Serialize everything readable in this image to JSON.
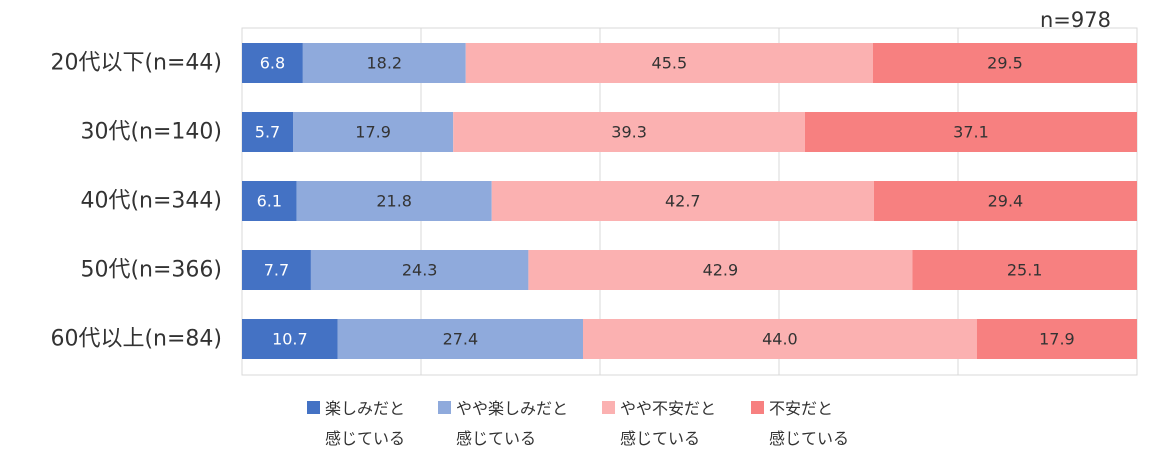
{
  "chart_data": {
    "type": "bar",
    "orientation": "horizontal",
    "stacked": true,
    "percent_stacked": true,
    "annotation": "n=978",
    "categories": [
      "20代以下(n=44)",
      "30代(n=140)",
      "40代(n=344)",
      "50代(n=366)",
      "60代以上(n=84)"
    ],
    "series": [
      {
        "name": "楽しみだと\n感じている",
        "color": "#4472c4",
        "values": [
          6.8,
          5.7,
          6.1,
          7.7,
          10.7
        ]
      },
      {
        "name": "やや楽しみだと\n感じている",
        "color": "#8faadc",
        "values": [
          18.2,
          17.9,
          21.8,
          24.3,
          27.4
        ]
      },
      {
        "name": "やや不安だと\n感じている",
        "color": "#fbb1b1",
        "values": [
          45.5,
          39.3,
          42.7,
          42.9,
          44.0
        ]
      },
      {
        "name": "不安だと\n感じている",
        "color": "#f78080",
        "values": [
          29.5,
          37.1,
          29.4,
          25.1,
          17.9
        ]
      }
    ],
    "xlim": [
      0,
      100
    ],
    "grid": true,
    "legend_position": "bottom"
  }
}
